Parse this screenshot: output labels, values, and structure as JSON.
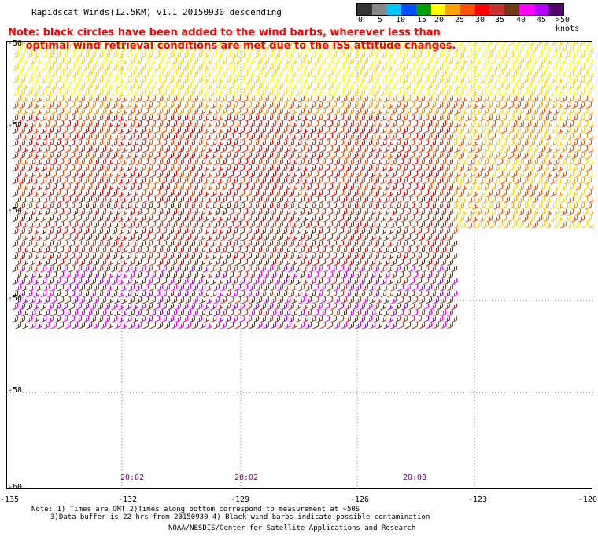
{
  "title": "Rapidscat Winds(12.5KM) v1.1 20150930 descending",
  "note_line1": "Note: black circles have been added to the wind barbs, wherever less than",
  "note_line2": "     optimal wind retrieval conditions are met due to the ISS attitude changes.",
  "legend": {
    "ticks": [
      "0",
      "5",
      "10",
      "15",
      "20",
      "25",
      "30",
      "35",
      "40",
      "45",
      ">50 knots"
    ],
    "colors": [
      "#333333",
      "#888888",
      "#00c8ff",
      "#0050ff",
      "#00a000",
      "#ffff00",
      "#ffa000",
      "#ff5000",
      "#ff0000",
      "#c83232",
      "#6e3c14",
      "#ff00ff",
      "#b400ff",
      "#50006e"
    ]
  },
  "lat_labels": [
    "-50",
    "-52",
    "-54",
    "-56",
    "-58",
    "-60"
  ],
  "lon_labels": [
    "-135",
    "-132",
    "-129",
    "-126",
    "-123",
    "-120"
  ],
  "time_labels": [
    "20:02",
    "20:02",
    "20:03"
  ],
  "footer": {
    "line1": "Note: 1) Times are GMT 2)Times along bottom correspond to measurement at ~50S",
    "line2": "3)Data buffer is 22 hrs from 20150930 4) Black wind barbs indicate possible contamination",
    "line3": "NOAA/NESDIS/Center for Satellite Applications and Research"
  }
}
